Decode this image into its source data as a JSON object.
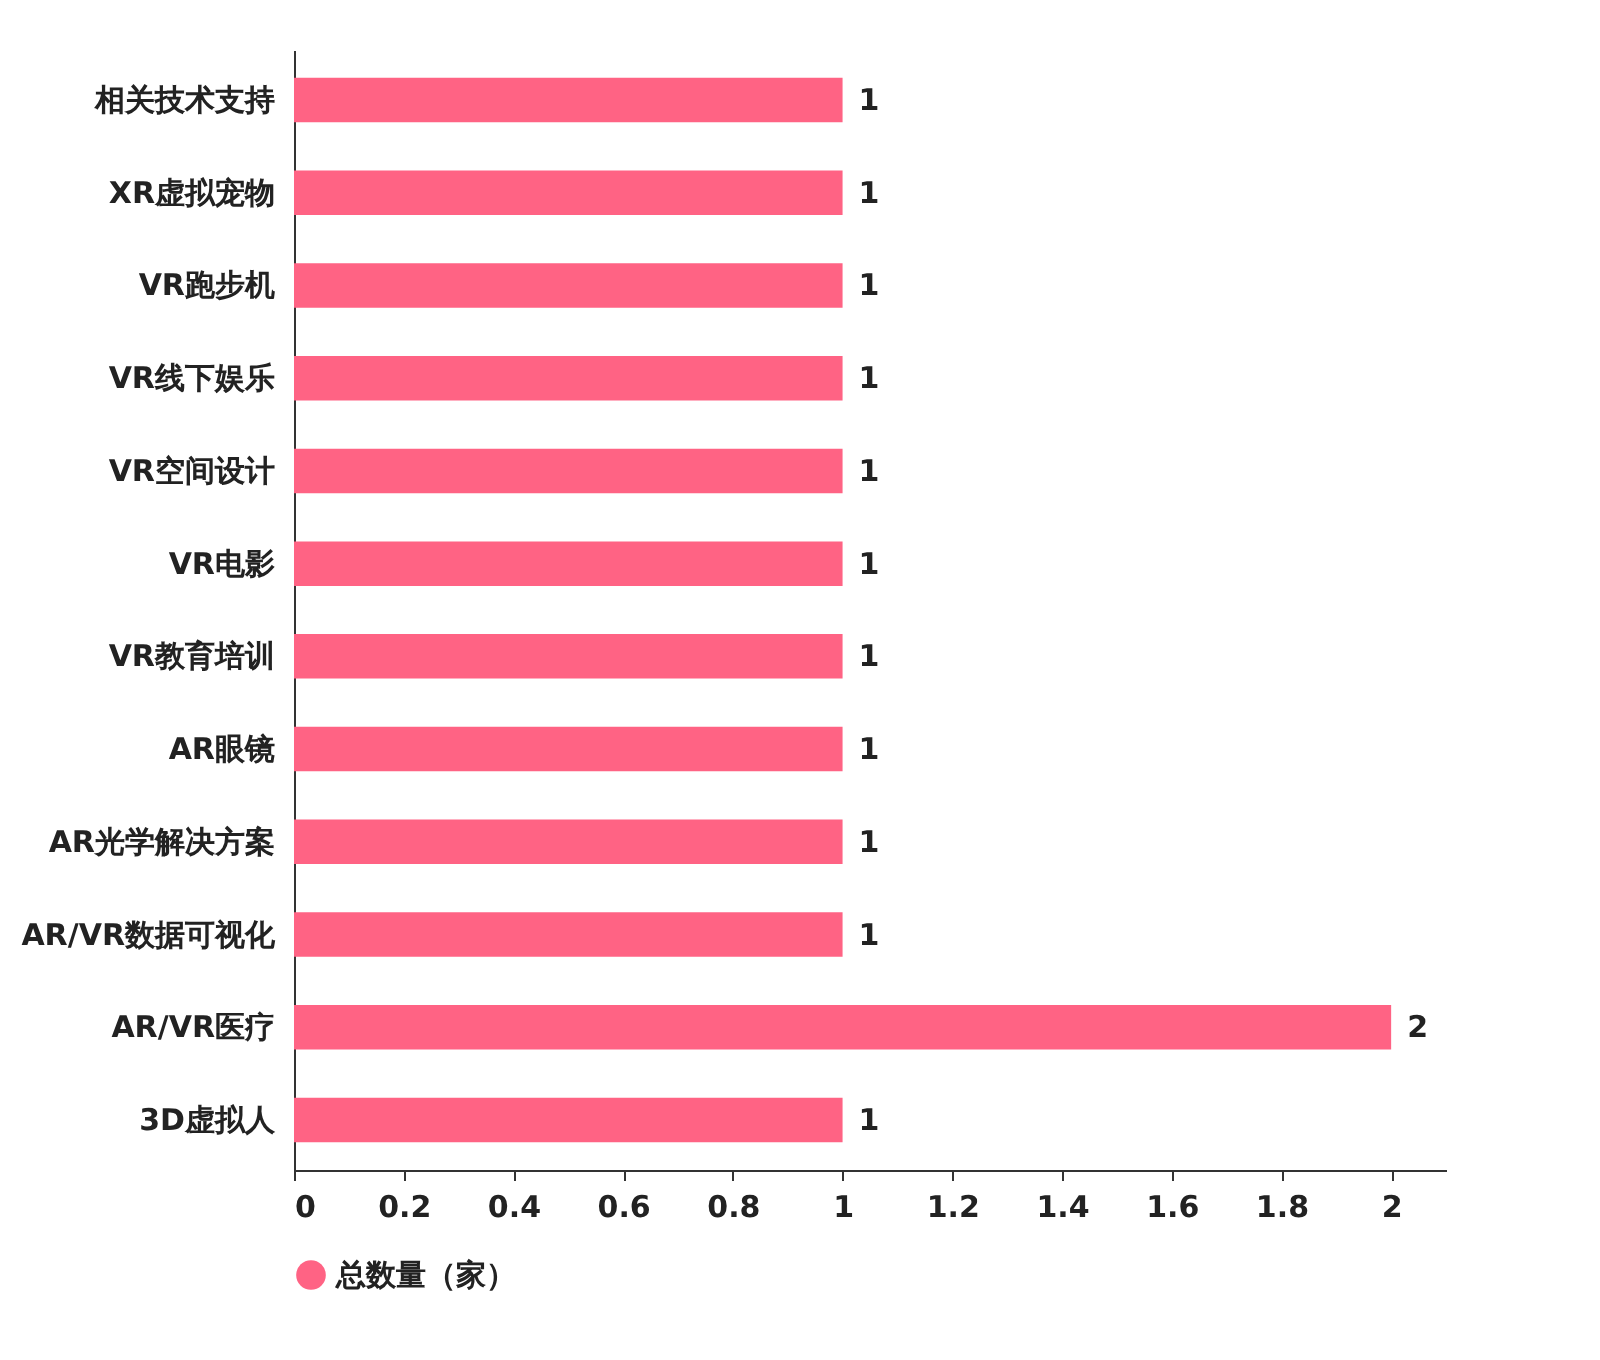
{
  "chart_data": {
    "type": "bar",
    "orientation": "horizontal",
    "categories": [
      "相关技术支持",
      "XR虚拟宠物",
      "VR跑步机",
      "VR线下娱乐",
      "VR空间设计",
      "VR电影",
      "VR教育培训",
      "AR眼镜",
      "AR光学解决方案",
      "AR/VR数据可视化",
      "AR/VR医疗",
      "3D虚拟人"
    ],
    "series": [
      {
        "name": "总数量（家）",
        "color": "#ff6384",
        "values": [
          1,
          1,
          1,
          1,
          1,
          1,
          1,
          1,
          1,
          1,
          2,
          1
        ]
      }
    ],
    "xlim": [
      0,
      2.1
    ],
    "xticks": [
      0,
      0.2,
      0.4,
      0.6,
      0.8,
      1,
      1.2,
      1.4,
      1.6,
      1.8,
      2
    ],
    "data_labels": true,
    "grid": false,
    "legend": "bottom"
  }
}
